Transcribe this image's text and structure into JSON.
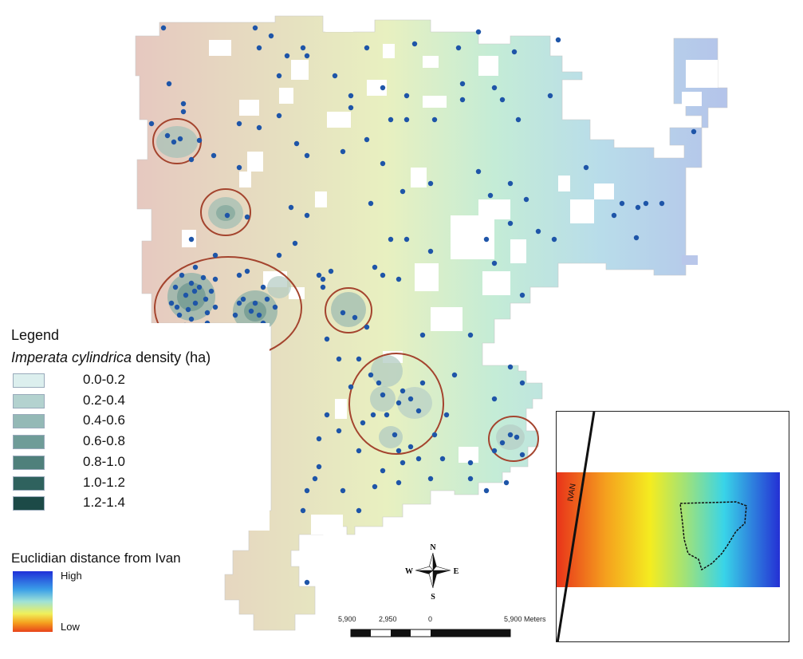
{
  "legend": {
    "title": "Legend",
    "species": "Imperata cylindrica",
    "density_suffix": " density (ha)",
    "classes": [
      {
        "label": "0.0-0.2",
        "color": "#dcefee"
      },
      {
        "label": "0.2-0.4",
        "color": "#b3d2cf"
      },
      {
        "label": "0.4-0.6",
        "color": "#94b9b6"
      },
      {
        "label": "0.6-0.8",
        "color": "#6f9c98"
      },
      {
        "label": "0.8-1.0",
        "color": "#4f807b"
      },
      {
        "label": "1.0-1.2",
        "color": "#2f625e"
      },
      {
        "label": "1.2-1.4",
        "color": "#1c4a47"
      }
    ]
  },
  "distance_legend": {
    "title": "Euclidian distance from Ivan",
    "high_label": "High",
    "low_label": "Low",
    "high_color": "#1f2fd8",
    "low_color": "#e8431a"
  },
  "north_arrow": {
    "n": "N",
    "s": "S",
    "e": "E",
    "w": "W"
  },
  "scale_bar": {
    "labels": [
      "5,900",
      "2,950",
      "0",
      "5,900 Meters"
    ]
  },
  "inset": {
    "road_label": "IVAN"
  },
  "colors": {
    "point": "#1e55a8",
    "hotspot_circle": "#a4442e",
    "ramp_west": "#e6c8c0",
    "ramp_east": "#b7c7e8"
  }
}
